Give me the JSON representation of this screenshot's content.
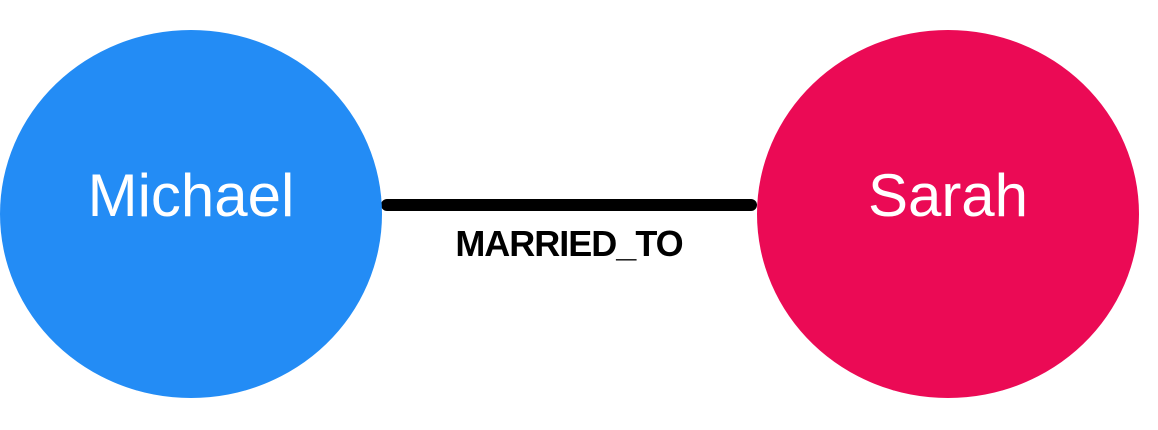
{
  "diagram": {
    "nodes": [
      {
        "id": "michael",
        "label": "Michael",
        "color": "#238cf5"
      },
      {
        "id": "sarah",
        "label": "Sarah",
        "color": "#eb0a55"
      }
    ],
    "edges": [
      {
        "from": "michael",
        "to": "sarah",
        "label": "MARRIED_TO",
        "color": "#000000"
      }
    ]
  }
}
